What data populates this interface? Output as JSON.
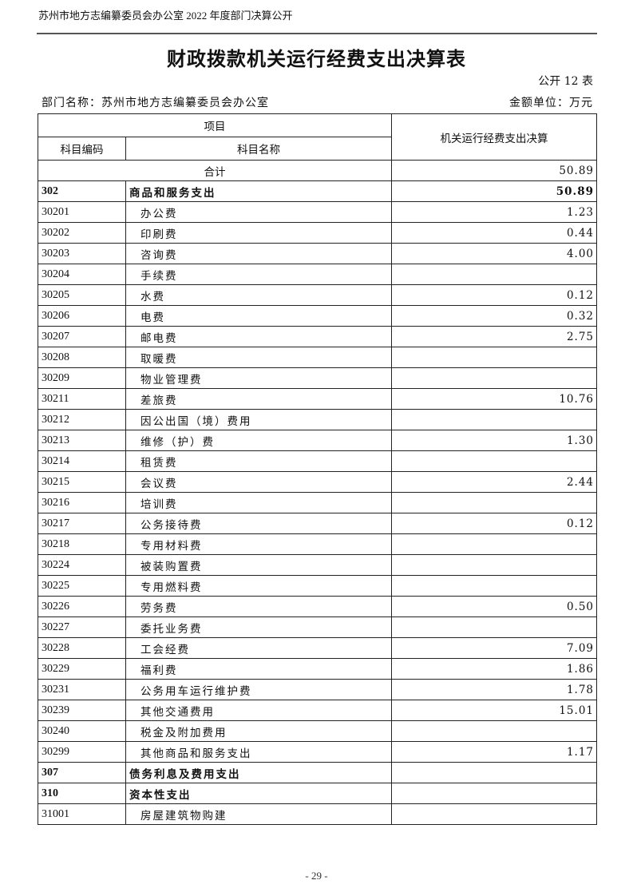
{
  "header": {
    "running_title": "苏州市地方志编纂委员会办公室 2022 年度部门决算公开"
  },
  "title": "财政拨款机关运行经费支出决算表",
  "table_no": "公开 12 表",
  "department": "部门名称：苏州市地方志编纂委员会办公室",
  "unit": "金额单位：万元",
  "table": {
    "headers": {
      "item": "项目",
      "code": "科目编码",
      "name": "科目名称",
      "value": "机关运行经费支出决算"
    },
    "total": {
      "label": "合计",
      "value": "50.89"
    },
    "rows": [
      {
        "code": "302",
        "name": "商品和服务支出",
        "value": "50.89",
        "bold": true
      },
      {
        "code": "30201",
        "name": "办公费",
        "value": "1.23"
      },
      {
        "code": "30202",
        "name": "印刷费",
        "value": "0.44"
      },
      {
        "code": "30203",
        "name": "咨询费",
        "value": "4.00"
      },
      {
        "code": "30204",
        "name": "手续费",
        "value": ""
      },
      {
        "code": "30205",
        "name": "水费",
        "value": "0.12"
      },
      {
        "code": "30206",
        "name": "电费",
        "value": "0.32"
      },
      {
        "code": "30207",
        "name": "邮电费",
        "value": "2.75"
      },
      {
        "code": "30208",
        "name": "取暖费",
        "value": ""
      },
      {
        "code": "30209",
        "name": "物业管理费",
        "value": ""
      },
      {
        "code": "30211",
        "name": "差旅费",
        "value": "10.76"
      },
      {
        "code": "30212",
        "name": "因公出国（境）费用",
        "value": ""
      },
      {
        "code": "30213",
        "name": "维修（护）费",
        "value": "1.30"
      },
      {
        "code": "30214",
        "name": "租赁费",
        "value": ""
      },
      {
        "code": "30215",
        "name": "会议费",
        "value": "2.44"
      },
      {
        "code": "30216",
        "name": "培训费",
        "value": ""
      },
      {
        "code": "30217",
        "name": "公务接待费",
        "value": "0.12"
      },
      {
        "code": "30218",
        "name": "专用材料费",
        "value": ""
      },
      {
        "code": "30224",
        "name": "被装购置费",
        "value": ""
      },
      {
        "code": "30225",
        "name": "专用燃料费",
        "value": ""
      },
      {
        "code": "30226",
        "name": "劳务费",
        "value": "0.50"
      },
      {
        "code": "30227",
        "name": "委托业务费",
        "value": ""
      },
      {
        "code": "30228",
        "name": "工会经费",
        "value": "7.09"
      },
      {
        "code": "30229",
        "name": "福利费",
        "value": "1.86"
      },
      {
        "code": "30231",
        "name": "公务用车运行维护费",
        "value": "1.78"
      },
      {
        "code": "30239",
        "name": "其他交通费用",
        "value": "15.01"
      },
      {
        "code": "30240",
        "name": "税金及附加费用",
        "value": ""
      },
      {
        "code": "30299",
        "name": "其他商品和服务支出",
        "value": "1.17"
      },
      {
        "code": "307",
        "name": "债务利息及费用支出",
        "value": "",
        "bold": true
      },
      {
        "code": "310",
        "name": "资本性支出",
        "value": "",
        "bold": true
      },
      {
        "code": "31001",
        "name": "房屋建筑物购建",
        "value": ""
      }
    ]
  },
  "page_number": "- 29 -"
}
